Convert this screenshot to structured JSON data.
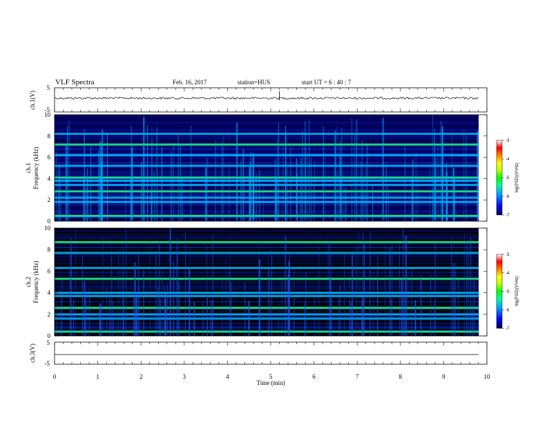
{
  "header": {
    "title": "VLF Spectra",
    "date": "Feb. 16, 2017",
    "station": "station=HUS",
    "start": "start  UT =   6 : 40 : 7"
  },
  "colorbar": {
    "label": "log(PSD)(V²/Hz)",
    "ticks": [
      "-3",
      "-4",
      "-5",
      "-6",
      "-7"
    ],
    "stops": [
      "#00004a",
      "#0000ff",
      "#00a0ff",
      "#00ffa0",
      "#00ff00",
      "#c0ff00",
      "#ffff00",
      "#ff8000",
      "#ff0000",
      "#ffffff"
    ]
  },
  "chart_data": [
    {
      "type": "line",
      "ylabel": "ch.1(V)",
      "ylim": [
        -5,
        5
      ],
      "y_ticks": [
        "5",
        "-5"
      ],
      "description_values": {
        "baseline_V": 0,
        "spike_at_min": 5.2,
        "spike_peak_V": 2
      }
    },
    {
      "type": "heatmap",
      "ylabel": "ch.1\nFrequency (kHz)",
      "ylabel_lines": [
        "ch.1",
        "Frequency (kHz)"
      ],
      "ylim": [
        0,
        10
      ],
      "y_ticks": [
        "0",
        "2",
        "4",
        "6",
        "8",
        "10"
      ],
      "bands_khz": [
        0.5,
        1.8,
        2.2,
        2.8,
        3.4,
        3.8,
        4.1,
        5.2,
        6.2,
        7.2,
        8.2
      ],
      "value_range_log_psd": [
        -7,
        -3
      ]
    },
    {
      "type": "heatmap",
      "ylabel_lines": [
        "ch.2",
        "Frequency (kHz)"
      ],
      "ylim": [
        0,
        10
      ],
      "y_ticks": [
        "0",
        "2",
        "4",
        "6",
        "8",
        "10"
      ],
      "bands_khz": [
        0.4,
        1.6,
        2.0,
        2.6,
        3.7,
        4.0,
        5.3,
        6.3,
        7.7,
        8.7
      ],
      "value_range_log_psd": [
        -7,
        -3
      ]
    },
    {
      "type": "line",
      "ylabel": "ch.3(V)",
      "ylim": [
        -5,
        5
      ],
      "y_ticks": [
        "5",
        "-5"
      ],
      "description_values": {
        "constant_V": -0.5
      }
    }
  ],
  "x_axis": {
    "label": "Time  (min)",
    "range": [
      0,
      10
    ],
    "ticks": [
      "0",
      "1",
      "2",
      "3",
      "4",
      "5",
      "6",
      "7",
      "8",
      "9",
      "10"
    ]
  }
}
